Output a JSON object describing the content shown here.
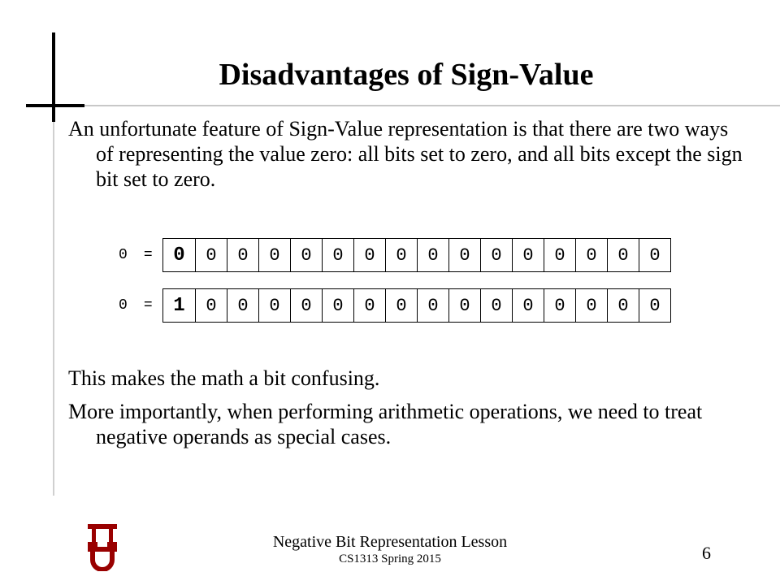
{
  "slide": {
    "title": "Disadvantages of Sign-Value",
    "bullets": [
      "An unfortunate feature of Sign-Value representation is that there are two ways of representing the value zero: all bits set to zero, and all bits except the sign bit set to zero.",
      "This makes the math a bit confusing.",
      "More importantly, when performing arithmetic operations, we need to treat negative operands as special cases."
    ]
  },
  "bit_rows": [
    {
      "value": "0",
      "equals": "=",
      "bits": [
        "0",
        "0",
        "0",
        "0",
        "0",
        "0",
        "0",
        "0",
        "0",
        "0",
        "0",
        "0",
        "0",
        "0",
        "0",
        "0"
      ]
    },
    {
      "value": "0",
      "equals": "=",
      "bits": [
        "1",
        "0",
        "0",
        "0",
        "0",
        "0",
        "0",
        "0",
        "0",
        "0",
        "0",
        "0",
        "0",
        "0",
        "0",
        "0"
      ]
    }
  ],
  "footer": {
    "lesson": "Negative Bit Representation Lesson",
    "course": "CS1313 Spring 2015",
    "page_number": "6"
  },
  "logo": {
    "icon": "ou-logo",
    "color": "#990000"
  }
}
